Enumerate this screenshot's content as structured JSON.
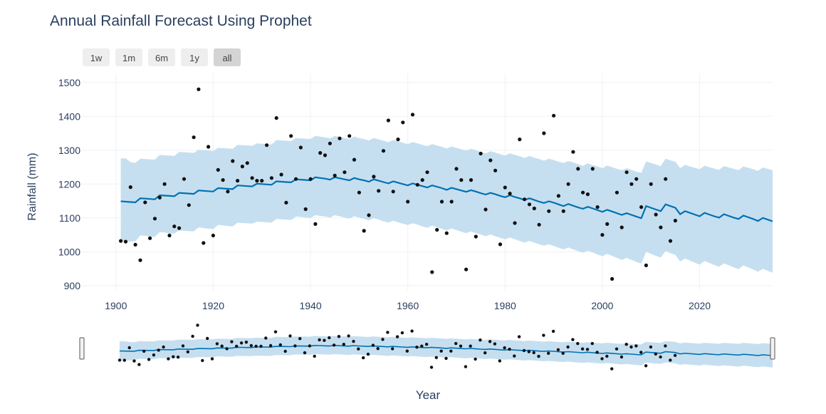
{
  "colors": {
    "band": "#c6dff0",
    "forecast_line": "#0072b2",
    "points": "#111111",
    "grid": "#eef1f5",
    "title": "#2a3f5f",
    "axis_text": "#2a3f5f"
  },
  "range_selector": {
    "buttons": [
      "1w",
      "1m",
      "6m",
      "1y",
      "all"
    ],
    "active": "all"
  },
  "chart_data": {
    "type": "scatter",
    "title": "Annual Rainfall Forecast Using Prophet",
    "xlabel": "Year",
    "ylabel": "Rainfall (mm)",
    "xlim": [
      1893,
      2035
    ],
    "ylim": [
      885,
      1510
    ],
    "xticks": [
      1900,
      1920,
      1940,
      1960,
      1980,
      2000,
      2020
    ],
    "yticks": [
      900,
      1000,
      1100,
      1200,
      1300,
      1400,
      1500
    ],
    "grid": true,
    "rangeslider": true,
    "series": [
      {
        "kind": "observed",
        "x": [
          1901,
          1902,
          1903,
          1904,
          1905,
          1906,
          1907,
          1908,
          1909,
          1910,
          1911,
          1912,
          1913,
          1914,
          1915,
          1916,
          1917,
          1918,
          1919,
          1920,
          1921,
          1922,
          1923,
          1924,
          1925,
          1926,
          1927,
          1928,
          1929,
          1930,
          1931,
          1932,
          1933,
          1934,
          1935,
          1936,
          1937,
          1938,
          1939,
          1940,
          1941,
          1942,
          1943,
          1944,
          1945,
          1946,
          1947,
          1948,
          1949,
          1950,
          1951,
          1952,
          1953,
          1954,
          1955,
          1956,
          1957,
          1958,
          1959,
          1960,
          1961,
          1962,
          1963,
          1964,
          1965,
          1966,
          1967,
          1968,
          1969,
          1970,
          1971,
          1972,
          1973,
          1974,
          1975,
          1976,
          1977,
          1978,
          1979,
          1980,
          1981,
          1982,
          1983,
          1984,
          1985,
          1986,
          1987,
          1988,
          1989,
          1990,
          1991,
          1992,
          1993,
          1994,
          1995,
          1996,
          1997,
          1998,
          1999,
          2000,
          2001,
          2002,
          2003,
          2004,
          2005,
          2006,
          2007,
          2008,
          2009,
          2010,
          2011,
          2012,
          2013,
          2014,
          2015
        ],
        "y": [
          1032,
          1030,
          1191,
          1021,
          975,
          1146,
          1040,
          1098,
          1160,
          1200,
          1048,
          1075,
          1070,
          1215,
          1138,
          1338,
          1480,
          1026,
          1310,
          1048,
          1242,
          1212,
          1178,
          1268,
          1210,
          1252,
          1262,
          1218,
          1210,
          1210,
          1315,
          1218,
          1395,
          1228,
          1145,
          1342,
          1215,
          1308,
          1126,
          1215,
          1082,
          1292,
          1285,
          1320,
          1225,
          1335,
          1235,
          1342,
          1272,
          1175,
          1062,
          1108,
          1222,
          1180,
          1298,
          1388,
          1178,
          1332,
          1382,
          1148,
          1405,
          1198,
          1212,
          1235,
          940,
          1065,
          1148,
          1055,
          1148,
          1245,
          1212,
          948,
          1212,
          1045,
          1290,
          1125,
          1270,
          1240,
          1022,
          1190,
          1172,
          1085,
          1332,
          1155,
          1140,
          1128,
          1080,
          1350,
          1120,
          1402,
          1165,
          1120,
          1200,
          1295,
          1245,
          1175,
          1170,
          1245,
          1132,
          1050,
          1082,
          920,
          1175,
          1072,
          1235,
          1200,
          1215,
          1132,
          960,
          1200,
          1110,
          1072,
          1215,
          1032,
          1092
        ]
      },
      {
        "kind": "forecast",
        "x": [
          1901,
          1902,
          1903,
          1904,
          1905,
          1906,
          1907,
          1908,
          1909,
          1910,
          1911,
          1912,
          1913,
          1914,
          1915,
          1916,
          1917,
          1918,
          1919,
          1920,
          1921,
          1922,
          1923,
          1924,
          1925,
          1926,
          1927,
          1928,
          1929,
          1930,
          1931,
          1932,
          1933,
          1934,
          1935,
          1936,
          1937,
          1938,
          1939,
          1940,
          1941,
          1942,
          1943,
          1944,
          1945,
          1946,
          1947,
          1948,
          1949,
          1950,
          1951,
          1952,
          1953,
          1954,
          1955,
          1956,
          1957,
          1958,
          1959,
          1960,
          1961,
          1962,
          1963,
          1964,
          1965,
          1966,
          1967,
          1968,
          1969,
          1970,
          1971,
          1972,
          1973,
          1974,
          1975,
          1976,
          1977,
          1978,
          1979,
          1980,
          1981,
          1982,
          1983,
          1984,
          1985,
          1986,
          1987,
          1988,
          1989,
          1990,
          1991,
          1992,
          1993,
          1994,
          1995,
          1996,
          1997,
          1998,
          1999,
          2000,
          2001,
          2002,
          2003,
          2004,
          2005,
          2006,
          2007,
          2008,
          2009,
          2010,
          2011,
          2012,
          2013,
          2014,
          2015,
          2016,
          2017,
          2018,
          2019,
          2020,
          2021,
          2022,
          2023,
          2024,
          2025,
          2026,
          2027,
          2028,
          2029,
          2030,
          2031,
          2032,
          2033,
          2034,
          2035
        ],
        "yhat": [
          1149,
          1148,
          1147,
          1146,
          1158,
          1157,
          1156,
          1155,
          1167,
          1166,
          1165,
          1164,
          1174,
          1173,
          1172,
          1171,
          1181,
          1180,
          1179,
          1178,
          1188,
          1187,
          1186,
          1185,
          1196,
          1195,
          1194,
          1193,
          1201,
          1200,
          1199,
          1198,
          1208,
          1207,
          1206,
          1205,
          1214,
          1213,
          1212,
          1211,
          1220,
          1218,
          1216,
          1213,
          1220,
          1217,
          1214,
          1211,
          1218,
          1214,
          1211,
          1207,
          1214,
          1210,
          1206,
          1202,
          1208,
          1204,
          1200,
          1196,
          1202,
          1198,
          1194,
          1190,
          1196,
          1192,
          1188,
          1183,
          1189,
          1185,
          1181,
          1177,
          1182,
          1178,
          1173,
          1169,
          1174,
          1170,
          1165,
          1161,
          1167,
          1162,
          1158,
          1153,
          1158,
          1153,
          1148,
          1144,
          1149,
          1145,
          1140,
          1135,
          1141,
          1136,
          1131,
          1127,
          1133,
          1128,
          1123,
          1118,
          1124,
          1119,
          1114,
          1109,
          1114,
          1109,
          1104,
          1099,
          1135,
          1130,
          1125,
          1120,
          1140,
          1135,
          1130,
          1111,
          1120,
          1115,
          1110,
          1105,
          1115,
          1110,
          1105,
          1101,
          1111,
          1106,
          1101,
          1097,
          1107,
          1102,
          1097,
          1091,
          1100,
          1095,
          1090
        ],
        "lower": [
          1032,
          1030,
          1030,
          1031,
          1048,
          1047,
          1045,
          1044,
          1058,
          1057,
          1054,
          1054,
          1063,
          1062,
          1061,
          1060,
          1072,
          1070,
          1068,
          1067,
          1079,
          1078,
          1076,
          1075,
          1086,
          1085,
          1084,
          1083,
          1089,
          1088,
          1087,
          1086,
          1097,
          1096,
          1095,
          1094,
          1104,
          1103,
          1101,
          1100,
          1108,
          1106,
          1104,
          1101,
          1108,
          1105,
          1101,
          1098,
          1105,
          1101,
          1097,
          1093,
          1099,
          1095,
          1090,
          1086,
          1092,
          1087,
          1083,
          1079,
          1084,
          1080,
          1075,
          1071,
          1077,
          1072,
          1068,
          1063,
          1069,
          1064,
          1059,
          1055,
          1060,
          1055,
          1051,
          1046,
          1051,
          1046,
          1041,
          1037,
          1042,
          1037,
          1032,
          1027,
          1032,
          1027,
          1022,
          1018,
          1022,
          1017,
          1012,
          1007,
          1013,
          1007,
          1002,
          997,
          1003,
          998,
          992,
          987,
          994,
          988,
          982,
          976,
          982,
          976,
          970,
          965,
          1000,
          994,
          988,
          983,
          1002,
          996,
          991,
          971,
          980,
          974,
          968,
          962,
          973,
          967,
          961,
          956,
          966,
          960,
          954,
          949,
          960,
          954,
          948,
          941,
          950,
          944,
          938
        ],
        "upper": [
          1276,
          1276,
          1265,
          1262,
          1275,
          1274,
          1273,
          1272,
          1286,
          1285,
          1284,
          1283,
          1295,
          1294,
          1293,
          1292,
          1301,
          1300,
          1299,
          1298,
          1307,
          1306,
          1305,
          1304,
          1316,
          1315,
          1314,
          1313,
          1320,
          1319,
          1318,
          1317,
          1330,
          1329,
          1328,
          1327,
          1336,
          1335,
          1334,
          1333,
          1342,
          1340,
          1338,
          1335,
          1342,
          1339,
          1336,
          1333,
          1340,
          1336,
          1333,
          1329,
          1336,
          1332,
          1328,
          1324,
          1330,
          1326,
          1322,
          1318,
          1324,
          1320,
          1316,
          1312,
          1318,
          1314,
          1310,
          1305,
          1311,
          1307,
          1303,
          1299,
          1304,
          1300,
          1295,
          1291,
          1297,
          1293,
          1288,
          1284,
          1291,
          1286,
          1282,
          1277,
          1283,
          1278,
          1274,
          1269,
          1275,
          1271,
          1266,
          1262,
          1268,
          1264,
          1259,
          1254,
          1261,
          1256,
          1252,
          1247,
          1255,
          1250,
          1245,
          1241,
          1247,
          1242,
          1237,
          1233,
          1267,
          1262,
          1258,
          1253,
          1275,
          1270,
          1266,
          1247,
          1257,
          1252,
          1248,
          1244,
          1254,
          1250,
          1246,
          1242,
          1253,
          1249,
          1245,
          1241,
          1252,
          1248,
          1244,
          1239,
          1249,
          1245,
          1241
        ]
      }
    ]
  }
}
